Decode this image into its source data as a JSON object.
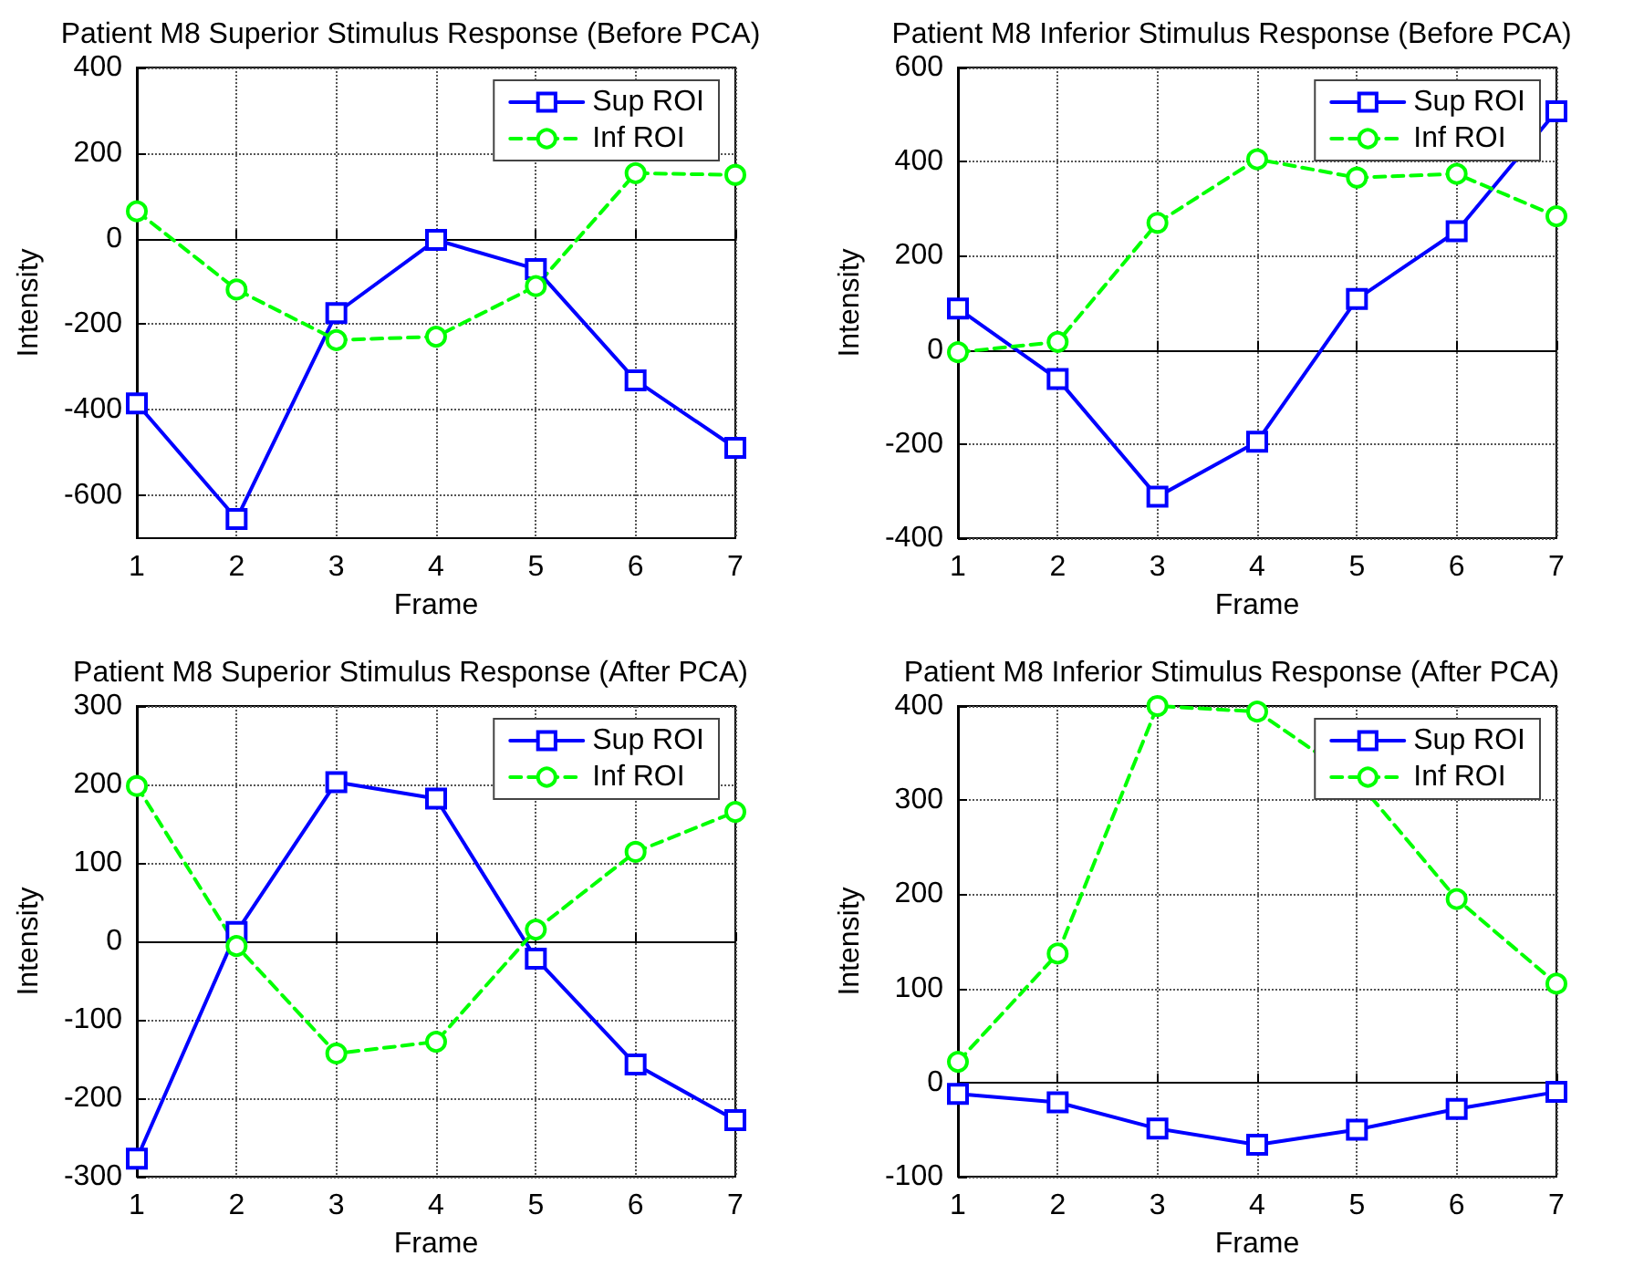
{
  "chart_data": [
    {
      "type": "line",
      "title": "Patient M8 Superior Stimulus Response (Before PCA)",
      "xlabel": "Frame",
      "ylabel": "Intensity",
      "x": [
        1,
        2,
        3,
        4,
        5,
        6,
        7
      ],
      "xlim": [
        1,
        7
      ],
      "xticks": [
        1,
        2,
        3,
        4,
        5,
        6,
        7
      ],
      "ylim": [
        -700,
        400
      ],
      "yticks": [
        -600,
        -400,
        -200,
        0,
        200,
        400
      ],
      "grid": true,
      "legend": "top right",
      "series": [
        {
          "name": "Sup ROI",
          "color": "#0000ff",
          "marker": "square",
          "line_style": "solid",
          "values": [
            -385,
            -655,
            -174,
            -3,
            -71,
            -331,
            -489
          ]
        },
        {
          "name": "Inf ROI",
          "color": "#00ff00",
          "marker": "circle",
          "line_style": "dashed",
          "values": [
            64,
            -119,
            -237,
            -229,
            -111,
            153,
            149
          ]
        }
      ]
    },
    {
      "type": "line",
      "title": "Patient M8 Inferior Stimulus Response (Before PCA)",
      "xlabel": "Frame",
      "ylabel": "Intensity",
      "x": [
        1,
        2,
        3,
        4,
        5,
        6,
        7
      ],
      "xlim": [
        1,
        7
      ],
      "xticks": [
        1,
        2,
        3,
        4,
        5,
        6,
        7
      ],
      "ylim": [
        -400,
        600
      ],
      "yticks": [
        -400,
        -200,
        0,
        200,
        400,
        600
      ],
      "grid": true,
      "legend": "top right",
      "series": [
        {
          "name": "Sup ROI",
          "color": "#0000ff",
          "marker": "square",
          "line_style": "solid",
          "values": [
            88,
            -62,
            -312,
            -195,
            108,
            252,
            507
          ]
        },
        {
          "name": "Inf ROI",
          "color": "#00ff00",
          "marker": "circle",
          "line_style": "dashed",
          "values": [
            -5,
            17,
            270,
            405,
            366,
            374,
            284
          ]
        }
      ]
    },
    {
      "type": "line",
      "title": "Patient M8 Superior Stimulus Response (After PCA)",
      "xlabel": "Frame",
      "ylabel": "Intensity",
      "x": [
        1,
        2,
        3,
        4,
        5,
        6,
        7
      ],
      "xlim": [
        1,
        7
      ],
      "xticks": [
        1,
        2,
        3,
        4,
        5,
        6,
        7
      ],
      "ylim": [
        -300,
        300
      ],
      "yticks": [
        -300,
        -200,
        -100,
        0,
        100,
        200,
        300
      ],
      "grid": true,
      "legend": "top right",
      "series": [
        {
          "name": "Sup ROI",
          "color": "#0000ff",
          "marker": "square",
          "line_style": "solid",
          "values": [
            -277,
            12,
            203,
            182,
            -22,
            -157,
            -228
          ]
        },
        {
          "name": "Inf ROI",
          "color": "#00ff00",
          "marker": "circle",
          "line_style": "dashed",
          "values": [
            198,
            -6,
            -143,
            -128,
            15,
            114,
            165
          ]
        }
      ]
    },
    {
      "type": "line",
      "title": "Patient M8 Inferior Stimulus Response (After PCA)",
      "xlabel": "Frame",
      "ylabel": "Intensity",
      "x": [
        1,
        2,
        3,
        4,
        5,
        6,
        7
      ],
      "xlim": [
        1,
        7
      ],
      "xticks": [
        1,
        2,
        3,
        4,
        5,
        6,
        7
      ],
      "ylim": [
        -100,
        400
      ],
      "yticks": [
        -100,
        0,
        100,
        200,
        300,
        400
      ],
      "grid": true,
      "legend": "top right",
      "series": [
        {
          "name": "Sup ROI",
          "color": "#0000ff",
          "marker": "square",
          "line_style": "solid",
          "values": [
            -12,
            -21,
            -49,
            -66,
            -50,
            -28,
            -10
          ]
        },
        {
          "name": "Inf ROI",
          "color": "#00ff00",
          "marker": "circle",
          "line_style": "dashed",
          "values": [
            22,
            137,
            400,
            394,
            321,
            195,
            105
          ]
        }
      ]
    }
  ]
}
